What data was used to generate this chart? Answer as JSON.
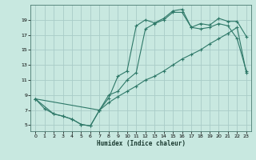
{
  "xlabel": "Humidex (Indice chaleur)",
  "bg_color": "#c8e8e0",
  "grid_color": "#a8ccc8",
  "line_color": "#2e7868",
  "xlim": [
    -0.5,
    23.5
  ],
  "ylim": [
    4.2,
    21.0
  ],
  "xticks": [
    0,
    1,
    2,
    3,
    4,
    5,
    6,
    7,
    8,
    9,
    10,
    11,
    12,
    13,
    14,
    15,
    16,
    17,
    18,
    19,
    20,
    21,
    22,
    23
  ],
  "yticks": [
    5,
    7,
    9,
    11,
    13,
    15,
    17,
    19
  ],
  "line1": {
    "x": [
      0,
      1,
      2,
      3,
      4,
      5,
      6,
      7,
      8,
      9,
      10,
      11,
      12,
      13,
      14,
      15,
      16,
      17,
      18,
      19,
      20,
      21,
      22,
      23
    ],
    "y": [
      8.5,
      7.2,
      6.5,
      6.2,
      5.8,
      5.1,
      4.9,
      7.0,
      8.6,
      11.5,
      12.2,
      18.2,
      19.0,
      18.6,
      19.2,
      20.2,
      20.4,
      18.0,
      18.5,
      18.3,
      19.2,
      18.8,
      18.8,
      16.8
    ]
  },
  "line2": {
    "x": [
      0,
      2,
      3,
      4,
      5,
      6,
      7,
      8,
      9,
      10,
      11,
      12,
      13,
      14,
      15,
      16,
      17,
      18,
      19,
      20,
      21,
      22,
      23
    ],
    "y": [
      8.5,
      6.5,
      6.2,
      5.8,
      5.1,
      4.9,
      7.0,
      9.0,
      9.5,
      11.0,
      12.0,
      17.8,
      18.5,
      19.0,
      20.0,
      20.0,
      18.0,
      17.8,
      18.0,
      18.5,
      18.2,
      16.5,
      12.2
    ]
  },
  "line3": {
    "x": [
      0,
      7,
      8,
      9,
      10,
      11,
      12,
      13,
      14,
      15,
      16,
      17,
      18,
      19,
      20,
      21,
      22,
      23
    ],
    "y": [
      8.5,
      7.0,
      8.0,
      8.8,
      9.5,
      10.2,
      11.0,
      11.5,
      12.2,
      13.0,
      13.8,
      14.4,
      15.0,
      15.8,
      16.5,
      17.2,
      18.0,
      12.0
    ]
  },
  "figsize": [
    3.2,
    2.0
  ],
  "dpi": 100
}
